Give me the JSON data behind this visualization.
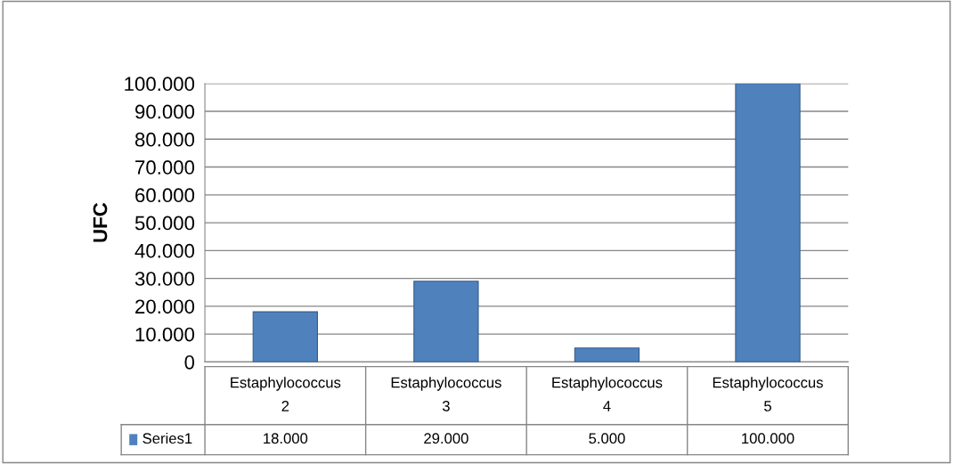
{
  "chart_data": {
    "type": "bar",
    "ylabel": "UFC",
    "categories": [
      "Estaphylococcus 2",
      "Estaphylococcus 3",
      "Estaphylococcus 4",
      "Estaphylococcus 5"
    ],
    "series": [
      {
        "name": "Series1",
        "color": "#4f81bd",
        "values": [
          18000,
          29000,
          5000,
          100000
        ],
        "value_labels": [
          "18.000",
          "29.000",
          "5.000",
          "100.000"
        ]
      }
    ],
    "ylim": [
      0,
      100000
    ],
    "yticks": [
      0,
      {
        "value": 10000,
        "label": "10.000"
      },
      {
        "value": 20000,
        "label": "20.000"
      },
      {
        "value": 30000,
        "label": "30.000"
      },
      {
        "value": 40000,
        "label": "40.000"
      },
      {
        "value": 50000,
        "label": "50.000"
      },
      {
        "value": 60000,
        "label": "60.000"
      },
      {
        "value": 70000,
        "label": "70.000"
      },
      {
        "value": 80000,
        "label": "80.000"
      },
      {
        "value": 90000,
        "label": "90.000"
      },
      {
        "value": 100000,
        "label": "100.000"
      }
    ],
    "grid": "y",
    "legend": "bottom left"
  }
}
